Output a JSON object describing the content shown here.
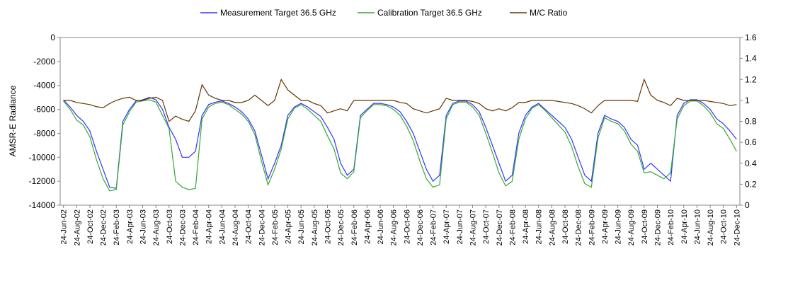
{
  "chart_data": {
    "type": "line",
    "y_label": "AMSR-E Radiance",
    "categories": [
      "24-Jun-02",
      null,
      "24-Aug-02",
      null,
      "24-Oct-02",
      null,
      "24-Dec-02",
      null,
      "24-Feb-03",
      null,
      "24-Apr-03",
      null,
      "24-Jun-03",
      null,
      "24-Aug-03",
      null,
      "24-Oct-03",
      null,
      "24-Dec-03",
      null,
      "24-Feb-04",
      null,
      "24-Apr-04",
      null,
      "24-Jun-04",
      null,
      "24-Aug-04",
      null,
      "24-Oct-04",
      null,
      "24-Dec-04",
      null,
      "24-Feb-05",
      null,
      "24-Apr-05",
      null,
      "24-Jun-05",
      null,
      "24-Aug-05",
      null,
      "24-Oct-05",
      null,
      "24-Dec-05",
      null,
      "24-Feb-06",
      null,
      "24-Apr-06",
      null,
      "24-Jun-06",
      null,
      "24-Aug-06",
      null,
      "24-Oct-06",
      null,
      "24-Dec-06",
      null,
      "24-Feb-07",
      null,
      "24-Apr-07",
      null,
      "24-Jun-07",
      null,
      "24-Aug-07",
      null,
      "24-Oct-07",
      null,
      "24-Dec-07",
      null,
      "24-Feb-08",
      null,
      "24-Apr-08",
      null,
      "24-Jun-08",
      null,
      "24-Aug-08",
      null,
      "24-Oct-08",
      null,
      "24-Dec-08",
      null,
      "24-Feb-09",
      null,
      "24-Apr-09",
      null,
      "24-Jun-09",
      null,
      "24-Aug-09",
      null,
      "24-Oct-09",
      null,
      "24-Dec-09",
      null,
      "24-Feb-10",
      null,
      "24-Apr-10",
      null,
      "24-Jun-10",
      null,
      "24-Aug-10",
      null,
      "24-Oct-10",
      null,
      "24-Dec-10"
    ],
    "series": [
      {
        "name": "Measurement Target 36.5 GHz",
        "color": "#3333ff",
        "axis": "y",
        "values": [
          -5200,
          -5800,
          -6500,
          -7000,
          -7800,
          -9500,
          -11000,
          -12500,
          -12600,
          -7000,
          -6000,
          -5300,
          -5200,
          -5000,
          -5200,
          -6000,
          -7500,
          -8500,
          -10000,
          -10000,
          -9500,
          -6500,
          -5600,
          -5400,
          -5300,
          -5500,
          -5800,
          -6200,
          -6800,
          -7800,
          -9800,
          -11800,
          -10500,
          -9000,
          -6500,
          -5800,
          -5500,
          -5800,
          -6200,
          -6600,
          -7500,
          -8500,
          -10500,
          -11500,
          -11000,
          -6500,
          -6000,
          -5500,
          -5500,
          -5600,
          -5800,
          -6200,
          -7000,
          -8000,
          -9500,
          -11000,
          -12000,
          -11500,
          -6500,
          -5500,
          -5300,
          -5300,
          -5600,
          -6200,
          -7500,
          -9000,
          -10500,
          -12000,
          -11500,
          -8000,
          -6500,
          -5800,
          -5500,
          -6000,
          -6500,
          -7000,
          -7500,
          -8500,
          -10000,
          -11500,
          -12000,
          -8000,
          -6500,
          -6800,
          -7000,
          -7500,
          -8500,
          -9000,
          -11000,
          -10500,
          -11000,
          -11500,
          -12000,
          -6500,
          -5500,
          -5200,
          -5200,
          -5500,
          -6000,
          -6800,
          -7200,
          -7800,
          -8500
        ]
      },
      {
        "name": "Calibration Target 36.5 GHz",
        "color": "#33aa33",
        "axis": "y",
        "values": [
          -5300,
          -6000,
          -6900,
          -7300,
          -8300,
          -10200,
          -11800,
          -12800,
          -12700,
          -7300,
          -6200,
          -5400,
          -5300,
          -5200,
          -5400,
          -6500,
          -7600,
          -12000,
          -12500,
          -12700,
          -12600,
          -6800,
          -5800,
          -5500,
          -5400,
          -5600,
          -6000,
          -6400,
          -7000,
          -8100,
          -10300,
          -12300,
          -11000,
          -9300,
          -6800,
          -5900,
          -5600,
          -6000,
          -6500,
          -7000,
          -8200,
          -9300,
          -11300,
          -11800,
          -11200,
          -6700,
          -6100,
          -5600,
          -5600,
          -5700,
          -6000,
          -6500,
          -7400,
          -8600,
          -10300,
          -11800,
          -12500,
          -12300,
          -6800,
          -5600,
          -5400,
          -5400,
          -5800,
          -6500,
          -8000,
          -9600,
          -11300,
          -12400,
          -12000,
          -8500,
          -6800,
          -5900,
          -5600,
          -6100,
          -6700,
          -7300,
          -7900,
          -9100,
          -10800,
          -12200,
          -12500,
          -8400,
          -6700,
          -7000,
          -7200,
          -7800,
          -8900,
          -9500,
          -11300,
          -11200,
          -11500,
          -11800,
          -11300,
          -6800,
          -5700,
          -5300,
          -5300,
          -5700,
          -6300,
          -7200,
          -7600,
          -8500,
          -9500
        ]
      },
      {
        "name": "M/C Ratio",
        "color": "#663300",
        "axis": "y2",
        "values": [
          1.0,
          1.0,
          0.98,
          0.97,
          0.96,
          0.94,
          0.93,
          0.97,
          1.0,
          1.02,
          1.03,
          1.0,
          1.0,
          1.02,
          1.03,
          1.0,
          0.8,
          0.85,
          0.82,
          0.8,
          0.9,
          1.15,
          1.05,
          1.02,
          1.0,
          1.0,
          0.98,
          0.98,
          1.0,
          1.05,
          1.0,
          0.95,
          1.0,
          1.2,
          1.1,
          1.05,
          1.0,
          1.0,
          0.97,
          0.95,
          0.88,
          0.9,
          0.92,
          0.9,
          1.0,
          1.0,
          1.0,
          1.0,
          1.0,
          1.0,
          1.0,
          0.98,
          0.97,
          0.92,
          0.9,
          0.88,
          0.9,
          0.92,
          1.02,
          1.0,
          1.0,
          1.0,
          0.99,
          0.97,
          0.92,
          0.9,
          0.92,
          0.9,
          0.93,
          0.98,
          0.98,
          1.0,
          1.0,
          1.0,
          1.0,
          0.99,
          0.98,
          0.97,
          0.95,
          0.92,
          0.88,
          0.95,
          1.0,
          1.0,
          1.0,
          1.0,
          1.0,
          0.99,
          1.2,
          1.05,
          1.0,
          0.98,
          0.95,
          1.02,
          1.0,
          1.0,
          1.0,
          1.0,
          0.99,
          0.98,
          0.97,
          0.95,
          0.96
        ]
      }
    ],
    "ylim": [
      -14000,
      0
    ],
    "yticks": [
      -14000,
      -12000,
      -10000,
      -8000,
      -6000,
      -4000,
      -2000,
      0
    ],
    "y2lim": [
      0,
      1.6
    ],
    "y2ticks": [
      0,
      0.2,
      0.4,
      0.6,
      0.8,
      1,
      1.2,
      1.4,
      1.6
    ],
    "legend": "top"
  }
}
